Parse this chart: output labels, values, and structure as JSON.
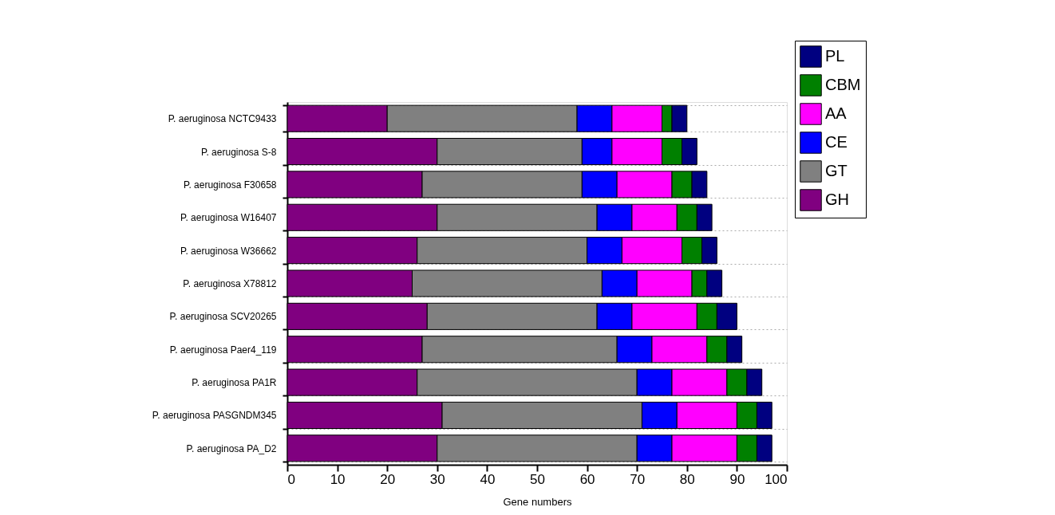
{
  "chart_data": {
    "type": "bar",
    "orientation": "horizontal",
    "stacked": true,
    "categories": [
      "P. aeruginosa NCTC9433",
      "P. aeruginosa S-8",
      "P. aeruginosa F30658",
      "P. aeruginosa W16407",
      "P. aeruginosa W36662",
      "P. aeruginosa X78812",
      "P. aeruginosa SCV20265",
      "P. aeruginosa Paer4_119",
      "P. aeruginosa PA1R",
      "P. aeruginosa PASGNDM345",
      "P. aeruginosa PA_D2"
    ],
    "series": [
      {
        "name": "GH",
        "color": "#800080",
        "values": [
          20,
          30,
          27,
          30,
          26,
          25,
          28,
          27,
          26,
          31,
          30
        ]
      },
      {
        "name": "GT",
        "color": "#808080",
        "values": [
          38,
          29,
          32,
          32,
          34,
          38,
          34,
          39,
          44,
          40,
          40
        ]
      },
      {
        "name": "CE",
        "color": "#0000ff",
        "values": [
          7,
          6,
          7,
          7,
          7,
          7,
          7,
          7,
          7,
          7,
          7
        ]
      },
      {
        "name": "AA",
        "color": "#ff00ff",
        "values": [
          10,
          10,
          11,
          9,
          12,
          11,
          13,
          11,
          11,
          12,
          13
        ]
      },
      {
        "name": "CBM",
        "color": "#008000",
        "values": [
          2,
          4,
          4,
          4,
          4,
          3,
          4,
          4,
          4,
          4,
          4
        ]
      },
      {
        "name": "PL",
        "color": "#000080",
        "values": [
          3,
          3,
          3,
          3,
          3,
          3,
          4,
          3,
          3,
          3,
          3
        ]
      }
    ],
    "xlabel": "Gene numbers",
    "xlim": [
      0,
      100
    ],
    "xticks": [
      0,
      10,
      20,
      30,
      40,
      50,
      60,
      70,
      80,
      90,
      100
    ],
    "grid": "y",
    "legend": "top right"
  }
}
